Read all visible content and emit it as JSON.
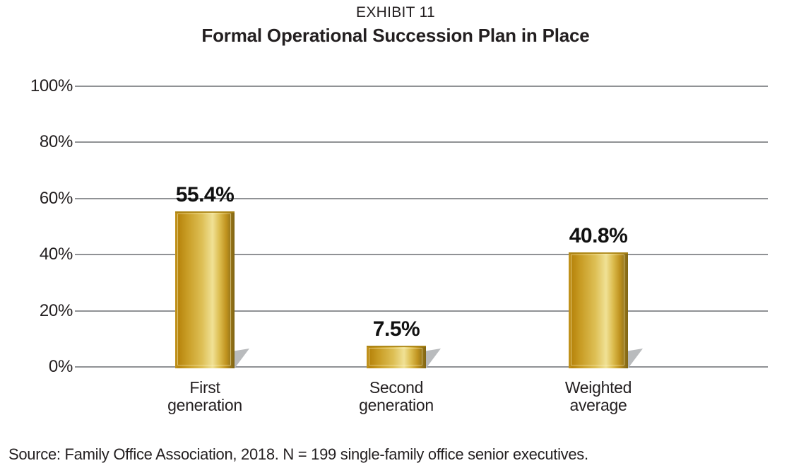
{
  "header": {
    "exhibit_label": "EXHIBIT 11",
    "title": "Formal Operational Succession Plan in Place"
  },
  "footer": {
    "source_note": "Source: Family Office Association, 2018. N = 199 single-family office senior executives."
  },
  "chart_data": {
    "type": "bar",
    "title": "Formal Operational Succession Plan in Place",
    "exhibit": "EXHIBIT 11",
    "categories": [
      "First generation",
      "Second generation",
      "Weighted average"
    ],
    "category_lines": [
      [
        "First",
        "generation"
      ],
      [
        "Second",
        "generation"
      ],
      [
        "Weighted",
        "average"
      ]
    ],
    "values": [
      55.4,
      7.5,
      40.8
    ],
    "value_labels": [
      "55.4%",
      "7.5%",
      "40.8%"
    ],
    "xlabel": "",
    "ylabel": "",
    "ylim": [
      0,
      100
    ],
    "y_ticks": [
      {
        "value": 0,
        "label": "0%"
      },
      {
        "value": 20,
        "label": "20%"
      },
      {
        "value": 40,
        "label": "40%"
      },
      {
        "value": 60,
        "label": "60%"
      },
      {
        "value": 80,
        "label": "80%"
      },
      {
        "value": 100,
        "label": "100%"
      }
    ],
    "grid": true,
    "legend": "none",
    "colors": {
      "bar_gold_dark": "#b8860e",
      "bar_gold_highlight": "#f0e195",
      "bar_gold_edge": "#8a6c16",
      "bar_drop_shadow": "#b9bbbd",
      "gridline": "#909295",
      "text": "#231f20",
      "background": "#ffffff"
    }
  }
}
